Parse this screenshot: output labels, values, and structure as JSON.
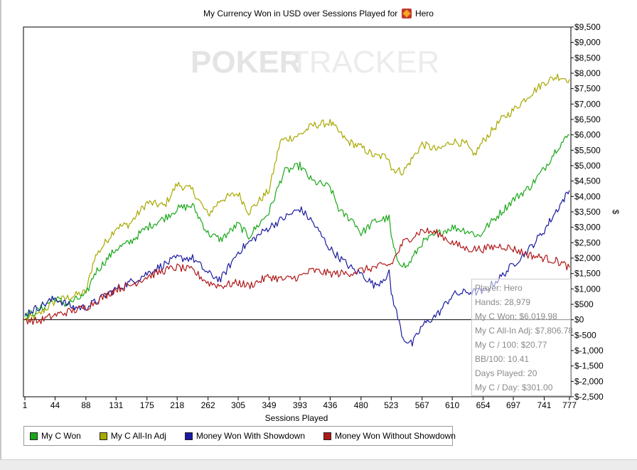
{
  "title": {
    "prefix": "My Currency Won in USD over Sessions Played for",
    "player": "Hero"
  },
  "watermark": {
    "poker": "POKER",
    "tracker": "TRACKER"
  },
  "chart_data": {
    "type": "line",
    "title": "My Currency Won in USD over Sessions Played for Hero",
    "xlabel": "Sessions Played",
    "ylabel": "$",
    "xlim": [
      1,
      777
    ],
    "ylim": [
      -2500,
      9500
    ],
    "x_ticks": [
      1,
      44,
      88,
      131,
      175,
      218,
      262,
      305,
      349,
      393,
      436,
      480,
      523,
      567,
      610,
      654,
      697,
      741,
      777
    ],
    "y_ticks": [
      {
        "v": 9500,
        "label": "$9,500"
      },
      {
        "v": 9000,
        "label": "$9,000"
      },
      {
        "v": 8500,
        "label": "$8,500"
      },
      {
        "v": 8000,
        "label": "$8,000"
      },
      {
        "v": 7500,
        "label": "$7,500"
      },
      {
        "v": 7000,
        "label": "$7,000"
      },
      {
        "v": 6500,
        "label": "$6,500"
      },
      {
        "v": 6000,
        "label": "$6,000"
      },
      {
        "v": 5500,
        "label": "$5,500"
      },
      {
        "v": 5000,
        "label": "$5,000"
      },
      {
        "v": 4500,
        "label": "$4,500"
      },
      {
        "v": 4000,
        "label": "$4,000"
      },
      {
        "v": 3500,
        "label": "$3,500"
      },
      {
        "v": 3000,
        "label": "$3,000"
      },
      {
        "v": 2500,
        "label": "$2,500"
      },
      {
        "v": 2000,
        "label": "$2,000"
      },
      {
        "v": 1500,
        "label": "$1,500"
      },
      {
        "v": 1000,
        "label": "$1,000"
      },
      {
        "v": 500,
        "label": "$500"
      },
      {
        "v": 0,
        "label": "$0"
      },
      {
        "v": -500,
        "label": "$-500"
      },
      {
        "v": -1000,
        "label": "$-1,000"
      },
      {
        "v": -1500,
        "label": "$-1,500"
      },
      {
        "v": -2000,
        "label": "$-2,000"
      },
      {
        "v": -2500,
        "label": "$-2,500"
      }
    ],
    "legend_position": "bottom",
    "series": [
      {
        "name": "My C All-In Adj",
        "color": "#a8a800",
        "points": [
          [
            1,
            0
          ],
          [
            20,
            150
          ],
          [
            44,
            600
          ],
          [
            60,
            700
          ],
          [
            88,
            900
          ],
          [
            100,
            2000
          ],
          [
            131,
            3000
          ],
          [
            150,
            3100
          ],
          [
            175,
            3800
          ],
          [
            200,
            3700
          ],
          [
            218,
            4400
          ],
          [
            240,
            4200
          ],
          [
            262,
            3400
          ],
          [
            280,
            3900
          ],
          [
            305,
            4100
          ],
          [
            320,
            3500
          ],
          [
            349,
            4200
          ],
          [
            365,
            5800
          ],
          [
            393,
            6000
          ],
          [
            410,
            6300
          ],
          [
            436,
            6400
          ],
          [
            460,
            5800
          ],
          [
            480,
            5600
          ],
          [
            500,
            5300
          ],
          [
            520,
            5300
          ],
          [
            523,
            4900
          ],
          [
            540,
            4800
          ],
          [
            567,
            5700
          ],
          [
            590,
            5500
          ],
          [
            610,
            5800
          ],
          [
            630,
            5700
          ],
          [
            640,
            5300
          ],
          [
            654,
            5800
          ],
          [
            680,
            6500
          ],
          [
            697,
            6800
          ],
          [
            720,
            7300
          ],
          [
            741,
            7700
          ],
          [
            760,
            7900
          ],
          [
            777,
            7800
          ]
        ]
      },
      {
        "name": "My C Won",
        "color": "#18a818",
        "points": [
          [
            1,
            100
          ],
          [
            20,
            300
          ],
          [
            44,
            700
          ],
          [
            60,
            500
          ],
          [
            88,
            800
          ],
          [
            100,
            1500
          ],
          [
            131,
            2300
          ],
          [
            150,
            2500
          ],
          [
            175,
            3000
          ],
          [
            200,
            3300
          ],
          [
            218,
            3600
          ],
          [
            240,
            3700
          ],
          [
            262,
            2800
          ],
          [
            280,
            2600
          ],
          [
            305,
            3100
          ],
          [
            320,
            2700
          ],
          [
            349,
            3500
          ],
          [
            370,
            4800
          ],
          [
            393,
            5000
          ],
          [
            410,
            4500
          ],
          [
            436,
            4300
          ],
          [
            450,
            3500
          ],
          [
            470,
            3200
          ],
          [
            480,
            2800
          ],
          [
            500,
            3200
          ],
          [
            520,
            3300
          ],
          [
            523,
            2700
          ],
          [
            530,
            2000
          ],
          [
            545,
            1700
          ],
          [
            567,
            2500
          ],
          [
            590,
            2800
          ],
          [
            610,
            3000
          ],
          [
            630,
            2900
          ],
          [
            650,
            2700
          ],
          [
            654,
            2900
          ],
          [
            680,
            3500
          ],
          [
            697,
            3900
          ],
          [
            720,
            4300
          ],
          [
            741,
            4900
          ],
          [
            760,
            5600
          ],
          [
            777,
            6000
          ]
        ]
      },
      {
        "name": "Money Won With Showdown",
        "color": "#1a1aa0",
        "points": [
          [
            1,
            200
          ],
          [
            20,
            400
          ],
          [
            44,
            700
          ],
          [
            70,
            400
          ],
          [
            88,
            400
          ],
          [
            110,
            700
          ],
          [
            131,
            1000
          ],
          [
            150,
            1200
          ],
          [
            175,
            1500
          ],
          [
            200,
            1800
          ],
          [
            218,
            2000
          ],
          [
            240,
            2000
          ],
          [
            262,
            1500
          ],
          [
            280,
            1300
          ],
          [
            305,
            2200
          ],
          [
            320,
            2500
          ],
          [
            349,
            3000
          ],
          [
            370,
            3300
          ],
          [
            393,
            3600
          ],
          [
            410,
            3200
          ],
          [
            436,
            2300
          ],
          [
            450,
            2000
          ],
          [
            470,
            1600
          ],
          [
            480,
            1500
          ],
          [
            500,
            1100
          ],
          [
            520,
            1500
          ],
          [
            523,
            900
          ],
          [
            540,
            -600
          ],
          [
            553,
            -800
          ],
          [
            567,
            -200
          ],
          [
            590,
            200
          ],
          [
            610,
            800
          ],
          [
            630,
            900
          ],
          [
            654,
            900
          ],
          [
            680,
            1400
          ],
          [
            697,
            1800
          ],
          [
            720,
            2300
          ],
          [
            741,
            2900
          ],
          [
            760,
            3600
          ],
          [
            777,
            4200
          ]
        ]
      },
      {
        "name": "Money Won Without Showdown",
        "color": "#b01818",
        "points": [
          [
            1,
            0
          ],
          [
            20,
            -50
          ],
          [
            44,
            150
          ],
          [
            70,
            300
          ],
          [
            88,
            400
          ],
          [
            110,
            700
          ],
          [
            131,
            1000
          ],
          [
            150,
            1100
          ],
          [
            175,
            1400
          ],
          [
            200,
            1600
          ],
          [
            218,
            1700
          ],
          [
            240,
            1600
          ],
          [
            262,
            1200
          ],
          [
            280,
            1100
          ],
          [
            305,
            1200
          ],
          [
            320,
            1100
          ],
          [
            349,
            1400
          ],
          [
            370,
            1300
          ],
          [
            393,
            1400
          ],
          [
            410,
            1600
          ],
          [
            436,
            1500
          ],
          [
            460,
            1500
          ],
          [
            480,
            1600
          ],
          [
            500,
            1700
          ],
          [
            523,
            1800
          ],
          [
            540,
            2500
          ],
          [
            567,
            2900
          ],
          [
            590,
            2800
          ],
          [
            610,
            2500
          ],
          [
            630,
            2300
          ],
          [
            654,
            2300
          ],
          [
            680,
            2400
          ],
          [
            697,
            2300
          ],
          [
            720,
            2100
          ],
          [
            741,
            2000
          ],
          [
            760,
            1900
          ],
          [
            777,
            1700
          ]
        ]
      }
    ]
  },
  "legend": [
    {
      "label": "My C Won",
      "color": "#18a818"
    },
    {
      "label": "My C All-In Adj",
      "color": "#a8a800"
    },
    {
      "label": "Money Won With Showdown",
      "color": "#1a1aa0"
    },
    {
      "label": "Money Won Without Showdown",
      "color": "#b01818"
    }
  ],
  "tooltip": {
    "player": "Player: Hero",
    "hands": "Hands: 28,979",
    "my_c_won": "My C Won: $6,019.98",
    "all_in_adj": "My C All-In Adj: $7,806.78",
    "c_per_100": "My C / 100: $20.77",
    "bb_per_100": "BB/100: 10.41",
    "days_played": "Days Played: 20",
    "c_per_day": "My C / Day: $301.00"
  }
}
